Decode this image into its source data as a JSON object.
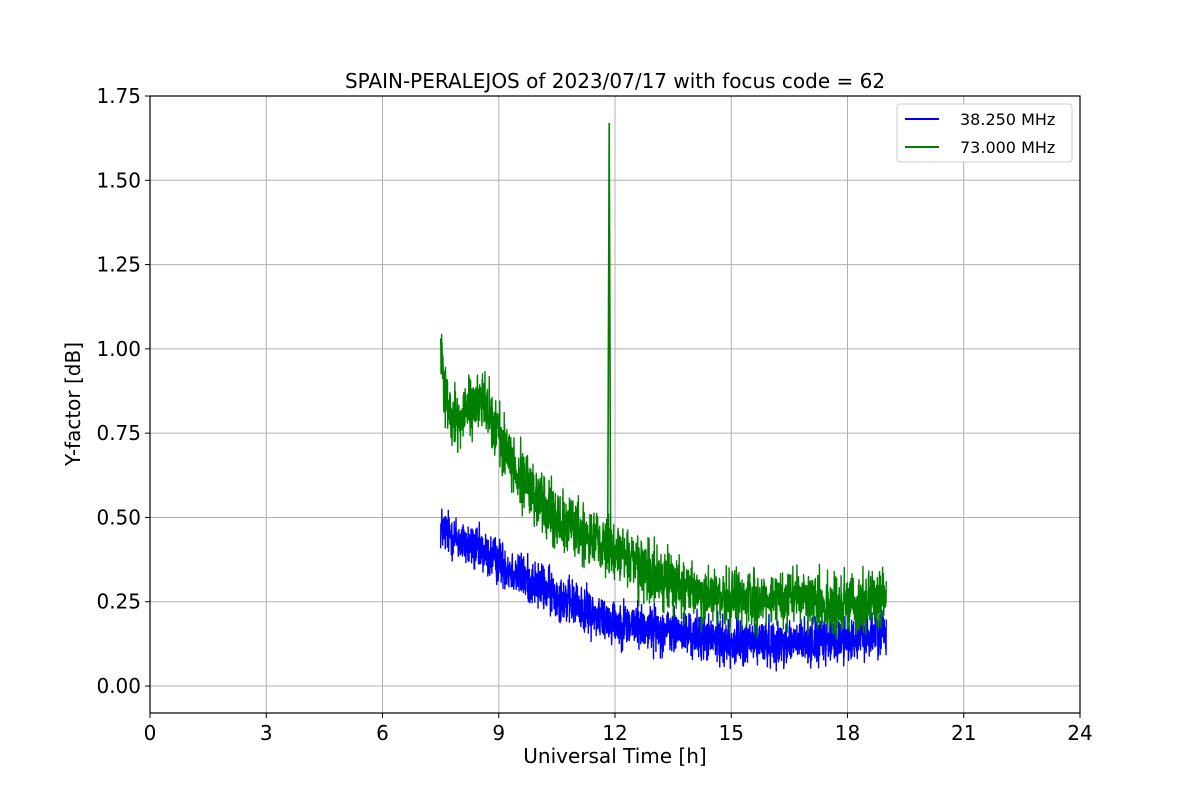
{
  "chart_data": {
    "type": "line",
    "title": "SPAIN-PERALEJOS of 2023/07/17 with focus code = 62",
    "xlabel": "Universal Time [h]",
    "ylabel": "Y-factor [dB]",
    "xlim": [
      0,
      24
    ],
    "ylim": [
      -0.08,
      1.75
    ],
    "xticks": [
      0,
      3,
      6,
      9,
      12,
      15,
      18,
      21,
      24
    ],
    "xtick_labels": [
      "0",
      "3",
      "6",
      "9",
      "12",
      "15",
      "18",
      "21",
      "24"
    ],
    "yticks": [
      0.0,
      0.25,
      0.5,
      0.75,
      1.0,
      1.25,
      1.5,
      1.75
    ],
    "ytick_labels": [
      "0.00",
      "0.25",
      "0.50",
      "0.75",
      "1.00",
      "1.25",
      "1.50",
      "1.75"
    ],
    "grid": true,
    "legend_position": "top-right",
    "series": [
      {
        "name": "38.250 MHz",
        "color": "#0000ff",
        "noise_amplitude": 0.1,
        "x": [
          7.5,
          8.0,
          8.5,
          9.0,
          9.5,
          10.0,
          10.5,
          11.0,
          11.5,
          12.0,
          12.5,
          13.0,
          13.5,
          14.0,
          14.5,
          15.0,
          15.5,
          16.0,
          16.5,
          17.0,
          17.5,
          18.0,
          18.5,
          19.0
        ],
        "y": [
          0.47,
          0.43,
          0.4,
          0.37,
          0.33,
          0.3,
          0.27,
          0.24,
          0.21,
          0.19,
          0.18,
          0.17,
          0.16,
          0.15,
          0.14,
          0.13,
          0.13,
          0.13,
          0.13,
          0.13,
          0.13,
          0.14,
          0.15,
          0.17
        ]
      },
      {
        "name": "73.000 MHz",
        "color": "#008000",
        "noise_amplitude": 0.13,
        "x": [
          7.5,
          7.6,
          7.8,
          8.0,
          8.3,
          8.6,
          9.0,
          9.5,
          10.0,
          10.5,
          11.0,
          11.5,
          12.0,
          12.5,
          13.0,
          13.5,
          14.0,
          14.5,
          15.0,
          15.5,
          16.0,
          16.5,
          17.0,
          17.5,
          18.0,
          18.5,
          19.0
        ],
        "y": [
          1.02,
          0.88,
          0.78,
          0.8,
          0.83,
          0.85,
          0.75,
          0.63,
          0.56,
          0.5,
          0.46,
          0.43,
          0.4,
          0.36,
          0.33,
          0.3,
          0.28,
          0.27,
          0.26,
          0.26,
          0.26,
          0.26,
          0.25,
          0.24,
          0.24,
          0.25,
          0.27
        ],
        "spikes": [
          {
            "x": 11.85,
            "y": 1.67
          }
        ]
      }
    ]
  }
}
